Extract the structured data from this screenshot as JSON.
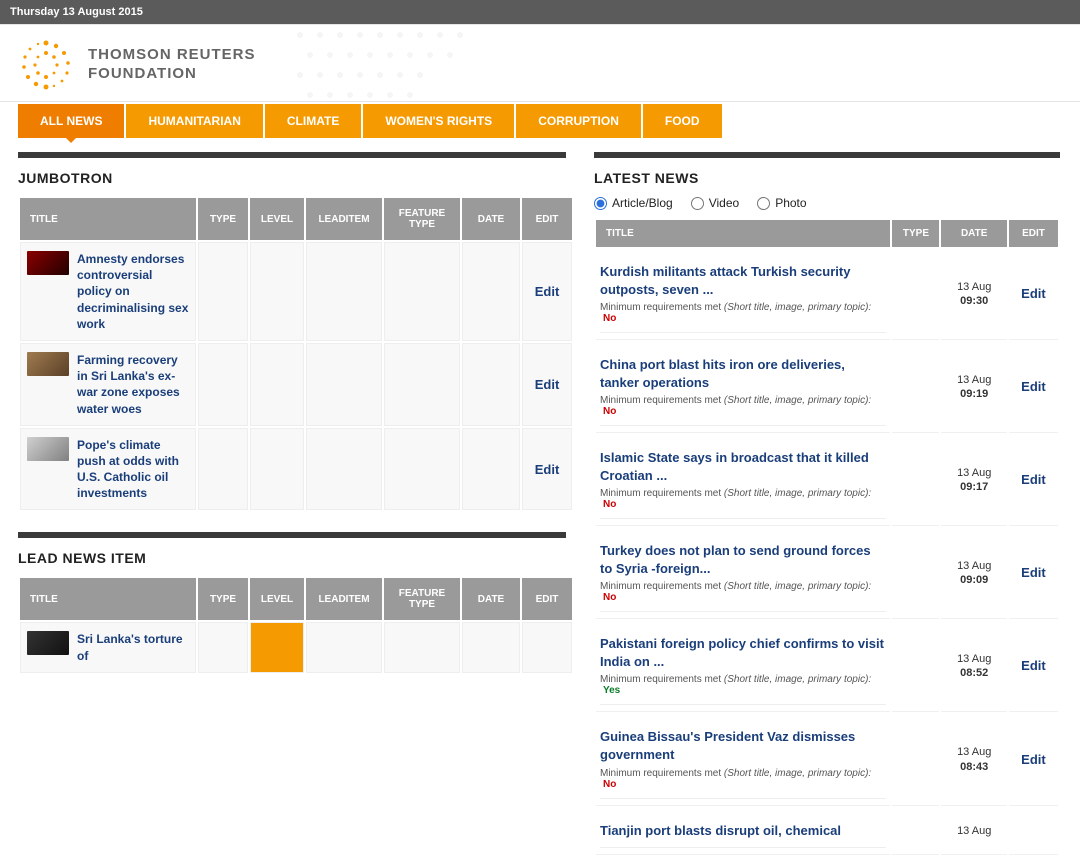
{
  "date_line": "Thursday 13 August 2015",
  "brand": {
    "line1": "THOMSON REUTERS",
    "line2": "FOUNDATION"
  },
  "nav": {
    "items": [
      {
        "label": "ALL NEWS",
        "active": true
      },
      {
        "label": "HUMANITARIAN",
        "active": false
      },
      {
        "label": "CLIMATE",
        "active": false
      },
      {
        "label": "WOMEN'S RIGHTS",
        "active": false
      },
      {
        "label": "CORRUPTION",
        "active": false
      },
      {
        "label": "FOOD",
        "active": false
      }
    ]
  },
  "jumbotron": {
    "title": "JUMBOTRON",
    "columns": [
      "TITLE",
      "TYPE",
      "LEVEL",
      "LEADITEM",
      "FEATURE TYPE",
      "DATE",
      "EDIT"
    ],
    "rows": [
      {
        "title": "Amnesty endorses controversial policy on decriminalising sex work",
        "thumb_bg": "linear-gradient(135deg,#8b0000,#220000)",
        "edit": "Edit"
      },
      {
        "title": "Farming recovery in Sri Lanka's ex-war zone exposes water woes",
        "thumb_bg": "linear-gradient(135deg,#a07b4f,#5a4028)",
        "edit": "Edit"
      },
      {
        "title": "Pope's climate push at odds with U.S. Catholic oil investments",
        "thumb_bg": "linear-gradient(135deg,#d0d0d0,#808080)",
        "edit": "Edit"
      }
    ]
  },
  "lead_news": {
    "title": "LEAD NEWS ITEM",
    "columns": [
      "TITLE",
      "TYPE",
      "LEVEL",
      "LEADITEM",
      "FEATURE TYPE",
      "DATE",
      "EDIT"
    ],
    "rows": [
      {
        "title": "Sri Lanka's torture of",
        "thumb_bg": "linear-gradient(135deg,#333,#111)",
        "level_highlight": true
      }
    ]
  },
  "latest": {
    "title": "LATEST NEWS",
    "filters": [
      {
        "label": "Article/Blog",
        "checked": true
      },
      {
        "label": "Video",
        "checked": false
      },
      {
        "label": "Photo",
        "checked": false
      }
    ],
    "columns": [
      "TITLE",
      "TYPE",
      "DATE",
      "EDIT"
    ],
    "meta_label": "Minimum requirements met ",
    "meta_detail": "(Short title, image, primary topic):",
    "rows": [
      {
        "title": "Kurdish militants attack Turkish security outposts, seven ...",
        "date": "13 Aug",
        "time": "09:30",
        "req": "No",
        "edit": "Edit"
      },
      {
        "title": "China port blast hits iron ore deliveries, tanker operations",
        "date": "13 Aug",
        "time": "09:19",
        "req": "No",
        "edit": "Edit"
      },
      {
        "title": "Islamic State says in broadcast that it killed Croatian ...",
        "date": "13 Aug",
        "time": "09:17",
        "req": "No",
        "edit": "Edit"
      },
      {
        "title": "Turkey does not plan to send ground forces to Syria -foreign...",
        "date": "13 Aug",
        "time": "09:09",
        "req": "No",
        "edit": "Edit"
      },
      {
        "title": "Pakistani foreign policy chief confirms to visit India on ...",
        "date": "13 Aug",
        "time": "08:52",
        "req": "Yes",
        "edit": "Edit"
      },
      {
        "title": "Guinea Bissau's President Vaz dismisses government",
        "date": "13 Aug",
        "time": "08:43",
        "req": "No",
        "edit": "Edit"
      },
      {
        "title": "Tianjin port blasts disrupt oil, chemical",
        "date": "13 Aug",
        "time": "",
        "req": "",
        "edit": ""
      }
    ]
  },
  "colors": {
    "orange": "#f59a00",
    "orange_dark": "#ef7d00",
    "link": "#1a3e7a",
    "th_bg": "#9a9a9a"
  }
}
